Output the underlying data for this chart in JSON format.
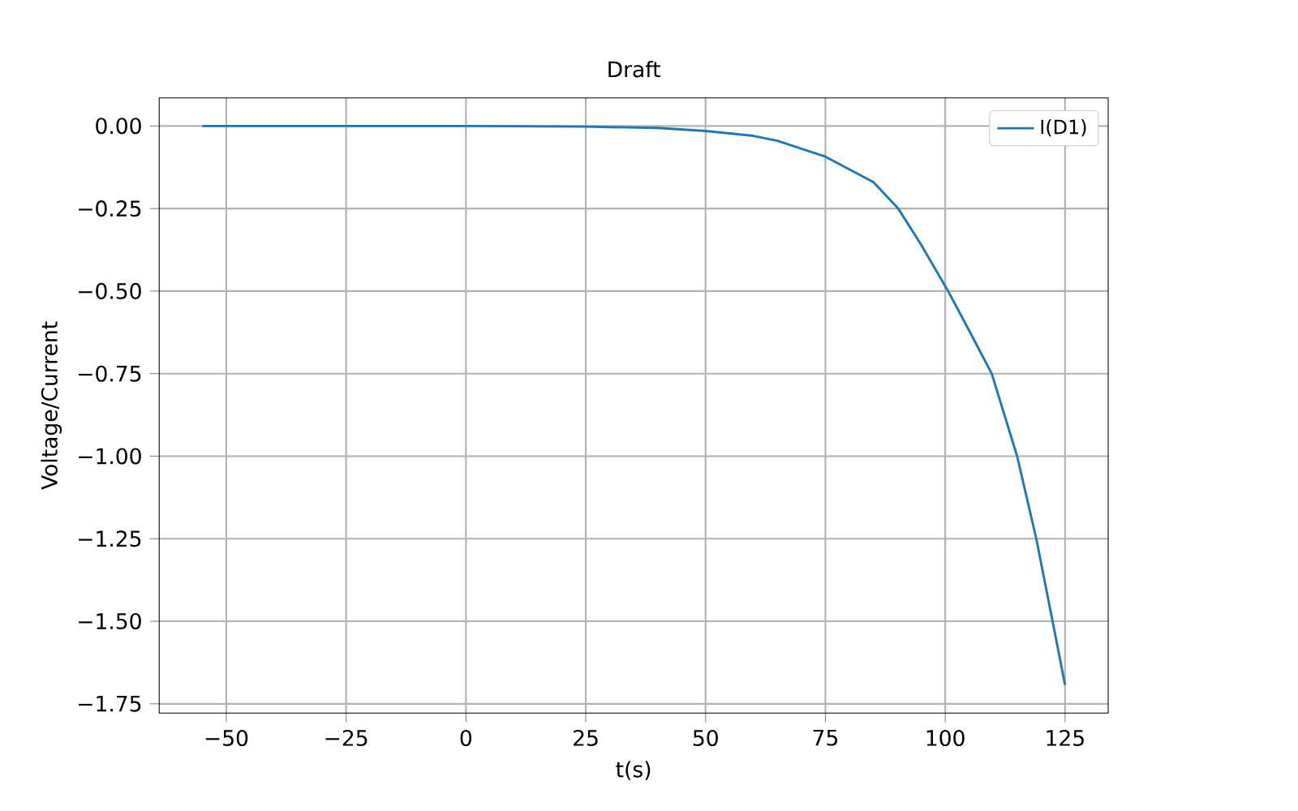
{
  "chart_data": {
    "type": "line",
    "title": "Draft",
    "xlabel": "t(s)",
    "ylabel": "Voltage/Current",
    "x": [
      -55,
      -25,
      0,
      25,
      40,
      50,
      60,
      65,
      75,
      85,
      90.2,
      95,
      100.6,
      105,
      109.7,
      115,
      119,
      122.4,
      125
    ],
    "series": [
      {
        "name": "I(D1)",
        "color": "#1f77b4",
        "values": [
          0,
          0,
          0,
          -0.002,
          -0.006,
          -0.015,
          -0.03,
          -0.045,
          -0.093,
          -0.17,
          -0.25,
          -0.36,
          -0.5,
          -0.62,
          -0.75,
          -1.0,
          -1.25,
          -1.5,
          -1.693
        ]
      }
    ],
    "xlim": [
      -64,
      134
    ],
    "ylim": [
      -1.778,
      0.085
    ],
    "xticks": [
      {
        "value": -50,
        "label": "−50"
      },
      {
        "value": -25,
        "label": "−25"
      },
      0,
      25,
      50,
      75,
      100,
      125
    ],
    "yticks": [
      {
        "value": 0,
        "label": "0.00"
      },
      {
        "value": -0.25,
        "label": "−0.25"
      },
      {
        "value": -0.5,
        "label": "−0.50"
      },
      {
        "value": -0.75,
        "label": "−0.75"
      },
      {
        "value": -1.0,
        "label": "−1.00"
      },
      {
        "value": -1.25,
        "label": "−1.25"
      },
      {
        "value": -1.5,
        "label": "−1.50"
      },
      {
        "value": -1.75,
        "label": "−1.75"
      }
    ],
    "grid": true,
    "legend": "top right",
    "line_style": "solid",
    "marker": "none"
  }
}
